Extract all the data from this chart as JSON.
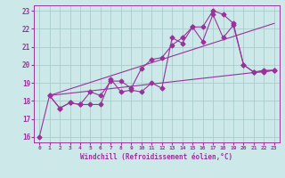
{
  "xlabel": "Windchill (Refroidissement éolien,°C)",
  "background_color": "#cce8e8",
  "grid_color": "#aacccc",
  "line_color": "#993399",
  "xlim_min": -0.5,
  "xlim_max": 23.5,
  "ylim_min": 15.7,
  "ylim_max": 23.3,
  "yticks": [
    16,
    17,
    18,
    19,
    20,
    21,
    22,
    23
  ],
  "xticks": [
    0,
    1,
    2,
    3,
    4,
    5,
    6,
    7,
    8,
    9,
    10,
    11,
    12,
    13,
    14,
    15,
    16,
    17,
    18,
    19,
    20,
    21,
    22,
    23
  ],
  "series1_x": [
    0,
    1,
    2,
    3,
    4,
    5,
    6,
    7,
    8,
    9,
    10,
    11,
    12,
    13,
    14,
    15,
    16,
    17,
    18,
    19,
    20,
    21,
    22,
    23
  ],
  "series1_y": [
    16.0,
    18.3,
    17.6,
    17.9,
    17.8,
    17.8,
    17.8,
    19.2,
    18.5,
    18.6,
    18.5,
    19.0,
    18.7,
    21.5,
    21.2,
    22.1,
    22.1,
    23.0,
    22.8,
    22.3,
    20.0,
    19.6,
    19.6,
    19.7
  ],
  "series2_x": [
    1,
    2,
    3,
    4,
    5,
    6,
    7,
    8,
    9,
    10,
    11,
    12,
    13,
    14,
    15,
    16,
    17,
    18,
    19,
    20,
    21,
    22,
    23
  ],
  "series2_y": [
    18.3,
    17.6,
    17.9,
    17.8,
    18.5,
    18.3,
    19.1,
    19.1,
    18.7,
    19.8,
    20.3,
    20.4,
    21.1,
    21.5,
    22.1,
    21.3,
    22.8,
    21.5,
    22.2,
    20.0,
    19.6,
    19.7,
    19.7
  ],
  "line3_x": [
    1,
    23
  ],
  "line3_y": [
    18.3,
    19.7
  ],
  "line4_x": [
    1,
    23
  ],
  "line4_y": [
    18.3,
    22.3
  ]
}
